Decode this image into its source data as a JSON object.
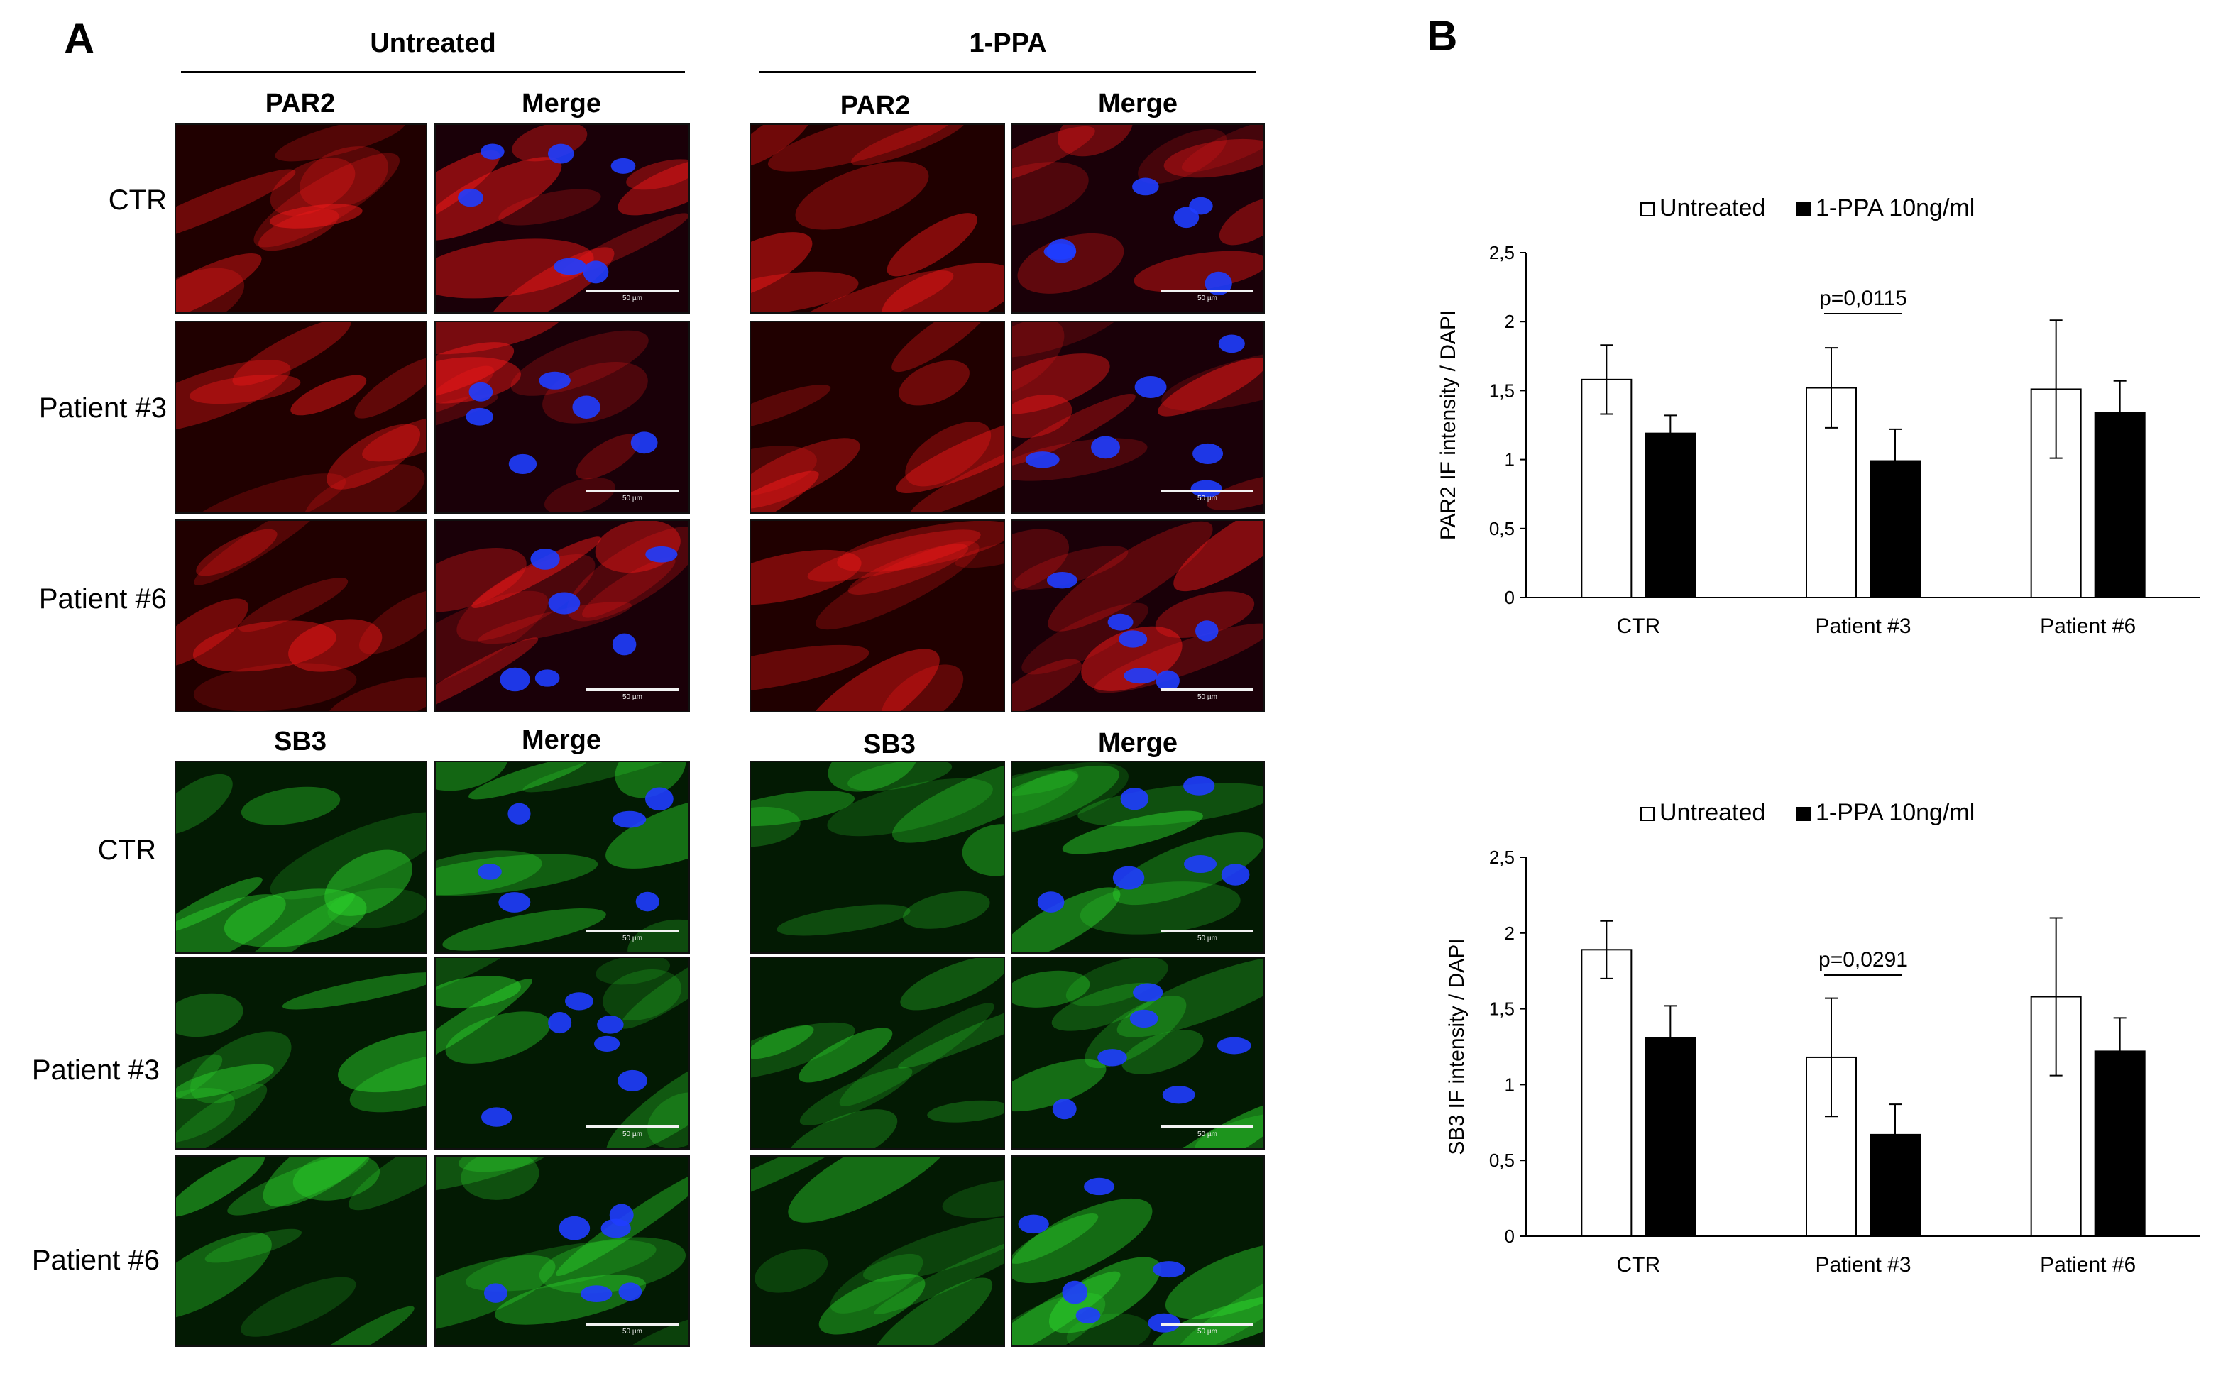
{
  "figure": {
    "panel_a_letter": "A",
    "panel_b_letter": "B",
    "groups": [
      "Untreated",
      "1-PPA"
    ],
    "par2_columns": [
      "PAR2",
      "Merge",
      "PAR2",
      "Merge"
    ],
    "sb3_columns": [
      "SB3",
      "Merge",
      "SB3",
      "Merge"
    ],
    "row_labels": [
      "CTR",
      "Patient #3",
      "Patient #6"
    ],
    "scale_label": "50 µm",
    "colors": {
      "par2": "#ff1a1a",
      "sb3": "#2fe02f",
      "dapi": "#1f3dff",
      "untreated_bar": "#ffffff",
      "treated_bar": "#000000"
    }
  },
  "chart_data": [
    {
      "type": "bar",
      "categories": [
        "CTR",
        "Patient #3",
        "Patient #6"
      ],
      "series": [
        {
          "name": "Untreated",
          "values": [
            1.58,
            1.52,
            1.51
          ],
          "errors": [
            0.25,
            0.29,
            0.5
          ]
        },
        {
          "name": "1-PPA 10ng/ml",
          "values": [
            1.19,
            0.99,
            1.34
          ],
          "errors": [
            0.13,
            0.23,
            0.23
          ]
        }
      ],
      "ylabel": "PAR2 IF intensity / DAPI",
      "ylim": [
        0,
        2.5
      ],
      "yticks": [
        "0",
        "0,5",
        "1",
        "1,5",
        "2",
        "2,5"
      ],
      "legend_position": "top",
      "annotation": {
        "text": "p=0,0115",
        "category": "Patient #3"
      }
    },
    {
      "type": "bar",
      "categories": [
        "CTR",
        "Patient #3",
        "Patient #6"
      ],
      "series": [
        {
          "name": "Untreated",
          "values": [
            1.89,
            1.18,
            1.58
          ],
          "errors": [
            0.19,
            0.39,
            0.52
          ]
        },
        {
          "name": "1-PPA 10ng/ml",
          "values": [
            1.31,
            0.67,
            1.22
          ],
          "errors": [
            0.21,
            0.2,
            0.22
          ]
        }
      ],
      "ylabel": "SB3 IF intensity / DAPI",
      "ylim": [
        0,
        2.5
      ],
      "yticks": [
        "0",
        "0,5",
        "1",
        "1,5",
        "2",
        "2,5"
      ],
      "legend_position": "top",
      "annotation": {
        "text": "p=0,0291",
        "category": "Patient #3"
      }
    }
  ]
}
